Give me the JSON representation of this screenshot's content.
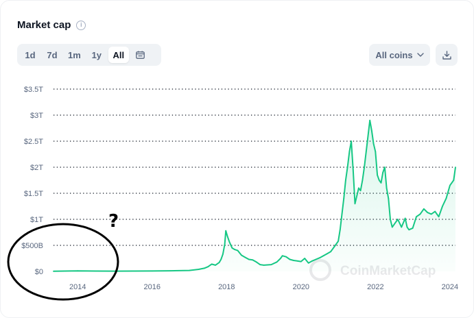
{
  "header": {
    "title": "Market cap",
    "info_icon": "info-icon"
  },
  "range_buttons": [
    {
      "label": "1d",
      "active": false
    },
    {
      "label": "7d",
      "active": false
    },
    {
      "label": "1m",
      "active": false
    },
    {
      "label": "1y",
      "active": false
    },
    {
      "label": "All",
      "active": true
    }
  ],
  "coins_select": {
    "value": "All coins",
    "icon": "chevron-down-icon"
  },
  "download_icon": "download-icon",
  "calendar_icon": "calendar-icon",
  "watermark": "CoinMarketCap",
  "annotation": {
    "text": "?",
    "shape": "ellipse"
  },
  "colors": {
    "line": "#16c784",
    "fill": "#16c784",
    "grid": "#0d1421",
    "accent": "#0d1421"
  },
  "chart_data": {
    "type": "area",
    "y_tick_labels": [
      "$0",
      "$500B",
      "$1T",
      "$1.5T",
      "$2T",
      "$2.5T",
      "$3T",
      "$3.5T"
    ],
    "y_tick_values": [
      0,
      500,
      1000,
      1500,
      2000,
      2500,
      3000,
      3500
    ],
    "x_tick_labels": [
      "2014",
      "2016",
      "2018",
      "2020",
      "2022",
      "2024"
    ],
    "x_tick_values": [
      2014,
      2016,
      2018,
      2020,
      2022,
      2024
    ],
    "xlim": [
      2013.35,
      2024.15
    ],
    "ylim": [
      0,
      3500
    ],
    "y_unit": "billion USD",
    "grid": "horizontal dotted",
    "series": [
      {
        "x": [
          2013.35,
          2013.8,
          2014.0,
          2014.5,
          2015.0,
          2015.5,
          2016.0,
          2016.5,
          2017.0,
          2017.25,
          2017.4,
          2017.5,
          2017.6,
          2017.7,
          2017.8,
          2017.85,
          2017.9,
          2017.95,
          2017.98,
          2018.02,
          2018.08,
          2018.15,
          2018.22,
          2018.3,
          2018.4,
          2018.5,
          2018.6,
          2018.7,
          2018.8,
          2018.9,
          2019.0,
          2019.2,
          2019.35,
          2019.45,
          2019.5,
          2019.6,
          2019.7,
          2019.8,
          2019.9,
          2020.0,
          2020.1,
          2020.2,
          2020.3,
          2020.4,
          2020.5,
          2020.6,
          2020.7,
          2020.8,
          2020.9,
          2021.0,
          2021.05,
          2021.1,
          2021.15,
          2021.2,
          2021.25,
          2021.3,
          2021.35,
          2021.4,
          2021.45,
          2021.5,
          2021.55,
          2021.6,
          2021.65,
          2021.7,
          2021.75,
          2021.8,
          2021.85,
          2021.9,
          2021.95,
          2022.0,
          2022.05,
          2022.1,
          2022.15,
          2022.2,
          2022.25,
          2022.3,
          2022.35,
          2022.4,
          2022.45,
          2022.5,
          2022.6,
          2022.7,
          2022.8,
          2022.85,
          2022.9,
          2023.0,
          2023.1,
          2023.2,
          2023.3,
          2023.4,
          2023.5,
          2023.6,
          2023.7,
          2023.8,
          2023.9,
          2024.0,
          2024.05,
          2024.1,
          2024.15
        ],
        "values": [
          2,
          8,
          10,
          7,
          5,
          6,
          8,
          12,
          18,
          40,
          60,
          90,
          140,
          120,
          170,
          230,
          330,
          520,
          780,
          680,
          560,
          450,
          420,
          400,
          310,
          270,
          230,
          220,
          180,
          130,
          120,
          130,
          180,
          250,
          300,
          280,
          230,
          210,
          200,
          190,
          250,
          160,
          200,
          230,
          260,
          300,
          340,
          380,
          480,
          580,
          800,
          1100,
          1400,
          1750,
          2000,
          2300,
          2500,
          1950,
          1300,
          1450,
          1600,
          1550,
          1750,
          2000,
          2300,
          2600,
          2900,
          2700,
          2450,
          2300,
          1850,
          1750,
          1700,
          1900,
          2000,
          1600,
          1400,
          1000,
          850,
          900,
          1000,
          850,
          1020,
          850,
          800,
          830,
          1050,
          1100,
          1200,
          1130,
          1100,
          1150,
          1050,
          1250,
          1400,
          1650,
          1700,
          1750,
          2000
        ]
      }
    ]
  }
}
